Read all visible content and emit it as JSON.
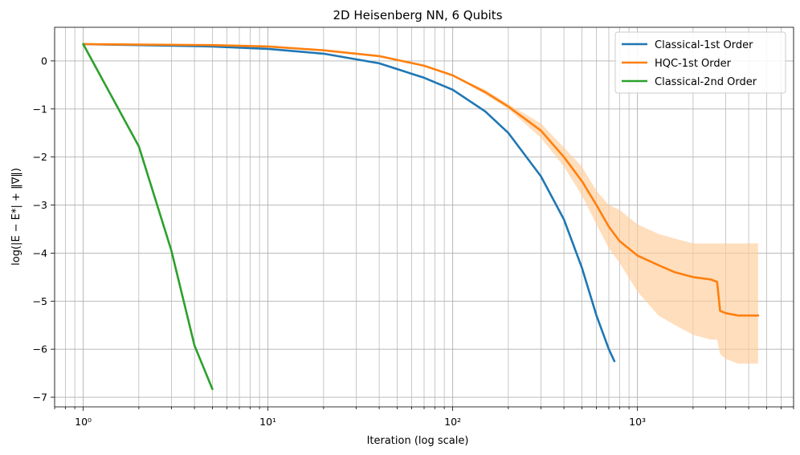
{
  "chart_data": {
    "type": "line",
    "title": "2D Heisenberg NN, 6 Qubits",
    "xlabel": "Iteration (log scale)",
    "ylabel": "log(|E − E*| + ‖∇‖)",
    "xscale": "log",
    "xlim": [
      0.7,
      7000
    ],
    "ylim": [
      -7.2,
      0.7
    ],
    "grid": true,
    "legend_position": "top-right",
    "x_ticks": [
      {
        "value": 1,
        "label": "10⁰"
      },
      {
        "value": 10,
        "label": "10¹"
      },
      {
        "value": 100,
        "label": "10²"
      },
      {
        "value": 1000,
        "label": "10³"
      }
    ],
    "y_ticks": [
      {
        "value": 0,
        "label": "0"
      },
      {
        "value": -1,
        "label": "−1"
      },
      {
        "value": -2,
        "label": "−2"
      },
      {
        "value": -3,
        "label": "−3"
      },
      {
        "value": -4,
        "label": "−4"
      },
      {
        "value": -5,
        "label": "−5"
      },
      {
        "value": -6,
        "label": "−6"
      },
      {
        "value": -7,
        "label": "−7"
      }
    ],
    "series": [
      {
        "name": "Classical-1st Order",
        "color": "#1f77b4",
        "x": [
          1,
          2,
          5,
          10,
          20,
          40,
          70,
          100,
          150,
          200,
          300,
          400,
          500,
          600,
          700,
          750
        ],
        "y": [
          0.35,
          0.33,
          0.3,
          0.25,
          0.15,
          -0.05,
          -0.35,
          -0.6,
          -1.05,
          -1.5,
          -2.4,
          -3.3,
          -4.3,
          -5.3,
          -6.0,
          -6.25
        ]
      },
      {
        "name": "HQC-1st Order",
        "color": "#ff7f0e",
        "band_color": "#ffcc99",
        "x": [
          1,
          5,
          10,
          20,
          40,
          70,
          100,
          150,
          200,
          300,
          400,
          500,
          600,
          700,
          800,
          1000,
          1300,
          1600,
          2000,
          2500,
          2700,
          2800,
          3000,
          3500,
          4000,
          4500
        ],
        "y": [
          0.35,
          0.33,
          0.3,
          0.22,
          0.1,
          -0.1,
          -0.3,
          -0.65,
          -0.95,
          -1.45,
          -2.0,
          -2.5,
          -3.0,
          -3.45,
          -3.75,
          -4.05,
          -4.25,
          -4.4,
          -4.5,
          -4.55,
          -4.6,
          -5.2,
          -5.25,
          -5.3,
          -5.3,
          -5.3
        ],
        "band_upper": [
          0.35,
          0.33,
          0.3,
          0.22,
          0.1,
          -0.1,
          -0.3,
          -0.6,
          -0.9,
          -1.3,
          -1.8,
          -2.2,
          -2.7,
          -3.0,
          -3.1,
          -3.4,
          -3.6,
          -3.7,
          -3.8,
          -3.8,
          -3.8,
          -3.8,
          -3.8,
          -3.8,
          -3.8,
          -3.8
        ],
        "band_lower": [
          0.35,
          0.33,
          0.3,
          0.22,
          0.1,
          -0.1,
          -0.3,
          -0.7,
          -1.0,
          -1.6,
          -2.2,
          -2.8,
          -3.4,
          -3.9,
          -4.2,
          -4.8,
          -5.3,
          -5.5,
          -5.7,
          -5.8,
          -5.8,
          -6.1,
          -6.2,
          -6.3,
          -6.3,
          -6.3
        ]
      },
      {
        "name": "Classical-2nd Order",
        "color": "#2ca02c",
        "x": [
          1,
          2,
          3,
          4,
          5
        ],
        "y": [
          0.35,
          -1.78,
          -3.95,
          -5.92,
          -6.83
        ]
      }
    ]
  }
}
